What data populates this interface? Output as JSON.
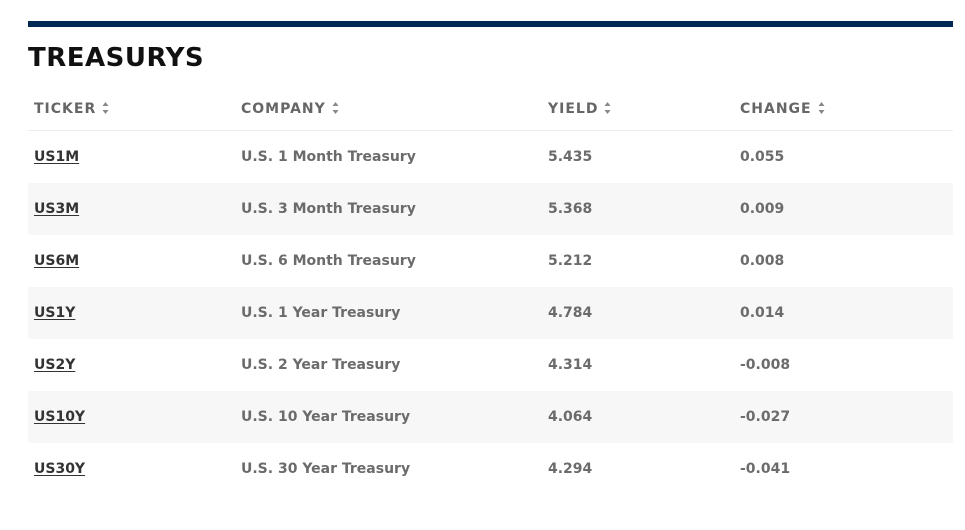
{
  "section": {
    "title": "TREASURYS"
  },
  "table": {
    "columns": [
      {
        "key": "ticker",
        "label": "TICKER"
      },
      {
        "key": "company",
        "label": "COMPANY"
      },
      {
        "key": "yield",
        "label": "YIELD"
      },
      {
        "key": "change",
        "label": "CHANGE"
      }
    ],
    "rows": [
      {
        "ticker": "US1M",
        "company": "U.S. 1 Month Treasury",
        "yield": "5.435",
        "change": "0.055"
      },
      {
        "ticker": "US3M",
        "company": "U.S. 3 Month Treasury",
        "yield": "5.368",
        "change": "0.009"
      },
      {
        "ticker": "US6M",
        "company": "U.S. 6 Month Treasury",
        "yield": "5.212",
        "change": "0.008"
      },
      {
        "ticker": "US1Y",
        "company": "U.S. 1 Year Treasury",
        "yield": "4.784",
        "change": "0.014"
      },
      {
        "ticker": "US2Y",
        "company": "U.S. 2 Year Treasury",
        "yield": "4.314",
        "change": "-0.008"
      },
      {
        "ticker": "US10Y",
        "company": "U.S. 10 Year Treasury",
        "yield": "4.064",
        "change": "-0.027"
      },
      {
        "ticker": "US30Y",
        "company": "U.S. 30 Year Treasury",
        "yield": "4.294",
        "change": "-0.041"
      }
    ]
  },
  "colors": {
    "accent_bar": "#002855",
    "header_text": "#666666",
    "ticker_text": "#333333",
    "zebra_row": "#f7f7f7"
  },
  "icons": {
    "sort": "sort-icon"
  }
}
